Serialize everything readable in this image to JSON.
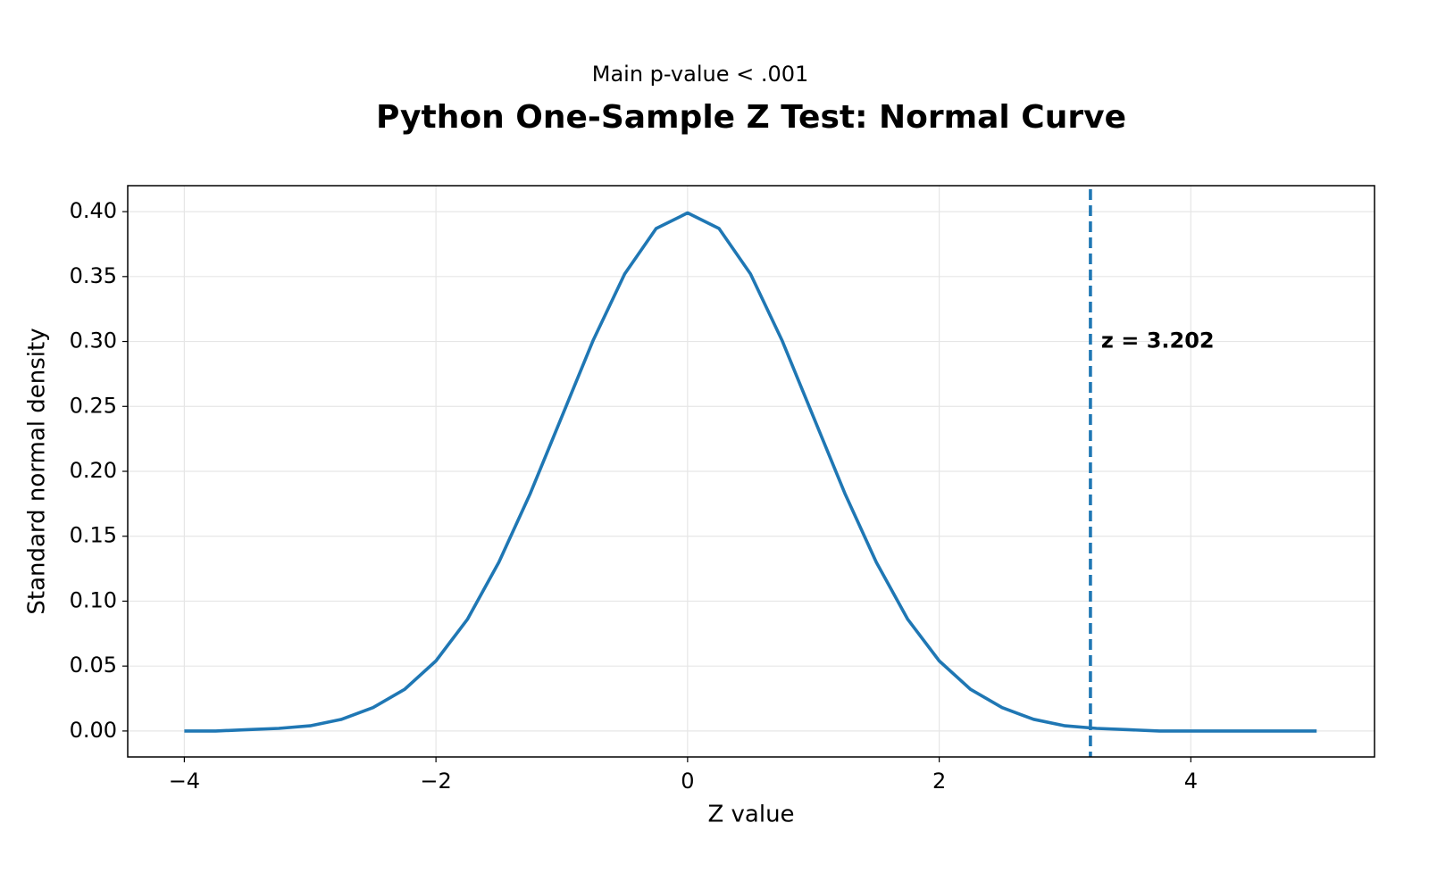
{
  "chart_data": {
    "type": "line",
    "subtitle": "Main p-value < .001",
    "title": "Python One-Sample Z Test: Normal Curve",
    "x_label": "Z value",
    "y_label": "Standard normal density",
    "x": [
      -4,
      -3.75,
      -3.5,
      -3.25,
      -3,
      -2.75,
      -2.5,
      -2.25,
      -2,
      -1.75,
      -1.5,
      -1.25,
      -1,
      -0.75,
      -0.5,
      -0.25,
      0,
      0.25,
      0.5,
      0.75,
      1,
      1.25,
      1.5,
      1.75,
      2,
      2.25,
      2.5,
      2.75,
      3,
      3.25,
      3.5,
      3.75,
      4,
      4.25,
      4.5,
      4.75,
      5
    ],
    "values": [
      0.0,
      0.0,
      0.001,
      0.002,
      0.004,
      0.009,
      0.018,
      0.032,
      0.054,
      0.086,
      0.13,
      0.183,
      0.242,
      0.301,
      0.352,
      0.387,
      0.399,
      0.387,
      0.352,
      0.301,
      0.242,
      0.183,
      0.13,
      0.086,
      0.054,
      0.032,
      0.018,
      0.009,
      0.004,
      0.002,
      0.001,
      0.0,
      0.0,
      0.0,
      0.0,
      0.0,
      0.0
    ],
    "color": "#1f77b4",
    "vline": {
      "x": 3.202,
      "label": "z = 3.202"
    },
    "xlim": [
      -4.45,
      5.46
    ],
    "ylim": [
      -0.02,
      0.42
    ],
    "xticks": [
      {
        "value": -4,
        "label": "−4"
      },
      {
        "value": -2,
        "label": "−2"
      },
      0,
      2,
      4
    ],
    "yticks": [
      {
        "value": 0,
        "label": "0.00"
      },
      {
        "value": 0.05,
        "label": "0.05"
      },
      {
        "value": 0.1,
        "label": "0.10"
      },
      {
        "value": 0.15,
        "label": "0.15"
      },
      {
        "value": 0.2,
        "label": "0.20"
      },
      {
        "value": 0.25,
        "label": "0.25"
      },
      {
        "value": 0.3,
        "label": "0.30"
      },
      {
        "value": 0.35,
        "label": "0.35"
      },
      {
        "value": 0.4,
        "label": "0.40"
      }
    ],
    "grid": true
  }
}
